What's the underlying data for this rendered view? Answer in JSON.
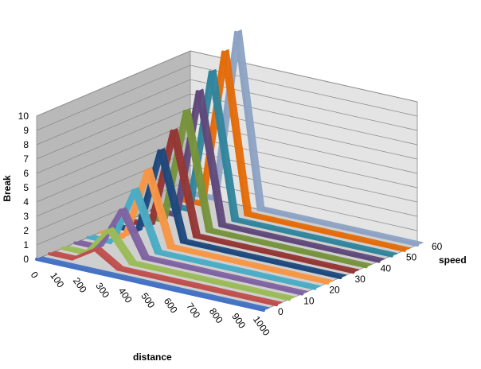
{
  "chart_data": {
    "type": "line-3d-ribbon",
    "title": "",
    "xlabel": "distance",
    "ylabel": "Break",
    "zlabel": "speed",
    "x_ticks": [
      "0",
      "100",
      "200",
      "300",
      "400",
      "500",
      "600",
      "700",
      "800",
      "900",
      "1000"
    ],
    "y_ticks": [
      "0",
      "1",
      "2",
      "3",
      "4",
      "5",
      "6",
      "7",
      "8",
      "9",
      "10"
    ],
    "z_ticks": [
      "0",
      "10",
      "20",
      "30",
      "40",
      "50",
      "60"
    ],
    "ylim": [
      0,
      10
    ],
    "grid": true,
    "series": [
      {
        "speed": 0,
        "color": "#4472C4",
        "values": [
          0,
          0,
          0,
          0,
          0,
          0,
          0,
          0,
          0,
          0,
          0
        ]
      },
      {
        "speed": 5,
        "color": "#C0504D",
        "values": [
          0,
          0,
          1,
          0,
          0,
          0,
          0,
          0,
          0,
          0,
          0
        ]
      },
      {
        "speed": 10,
        "color": "#9BBB59",
        "values": [
          0,
          0,
          2,
          0,
          0,
          0,
          0,
          0,
          0,
          0,
          0
        ]
      },
      {
        "speed": 15,
        "color": "#8064A2",
        "values": [
          0,
          0,
          3,
          0,
          0,
          0,
          0,
          0,
          0,
          0,
          0
        ]
      },
      {
        "speed": 20,
        "color": "#4BACC6",
        "values": [
          0,
          0,
          4,
          0,
          0,
          0,
          0,
          0,
          0,
          0,
          0
        ]
      },
      {
        "speed": 25,
        "color": "#F79646",
        "values": [
          0,
          0,
          5,
          0,
          0,
          0,
          0,
          0,
          0,
          0,
          0
        ]
      },
      {
        "speed": 30,
        "color": "#1F497D",
        "values": [
          0,
          0,
          6,
          0,
          0,
          0,
          0,
          0,
          0,
          0,
          0
        ]
      },
      {
        "speed": 35,
        "color": "#953735",
        "values": [
          0,
          0,
          7,
          0,
          0,
          0,
          0,
          0,
          0,
          0,
          0
        ]
      },
      {
        "speed": 40,
        "color": "#77933C",
        "values": [
          0,
          0,
          8,
          0,
          0,
          0,
          0,
          0,
          0,
          0,
          0
        ]
      },
      {
        "speed": 45,
        "color": "#604A7B",
        "values": [
          0,
          0,
          9,
          0,
          0,
          0,
          0,
          0,
          0,
          0,
          0
        ]
      },
      {
        "speed": 50,
        "color": "#31859C",
        "values": [
          0,
          0,
          10,
          0,
          0,
          0,
          0,
          0,
          0,
          0,
          0
        ]
      },
      {
        "speed": 55,
        "color": "#E46C0A",
        "values": [
          0,
          0,
          11,
          0,
          0,
          0,
          0,
          0,
          0,
          0,
          0
        ]
      },
      {
        "speed": 60,
        "color": "#8EA3C4",
        "values": [
          0,
          0,
          12,
          0,
          0,
          0,
          0,
          0,
          0,
          0,
          0
        ]
      }
    ]
  }
}
